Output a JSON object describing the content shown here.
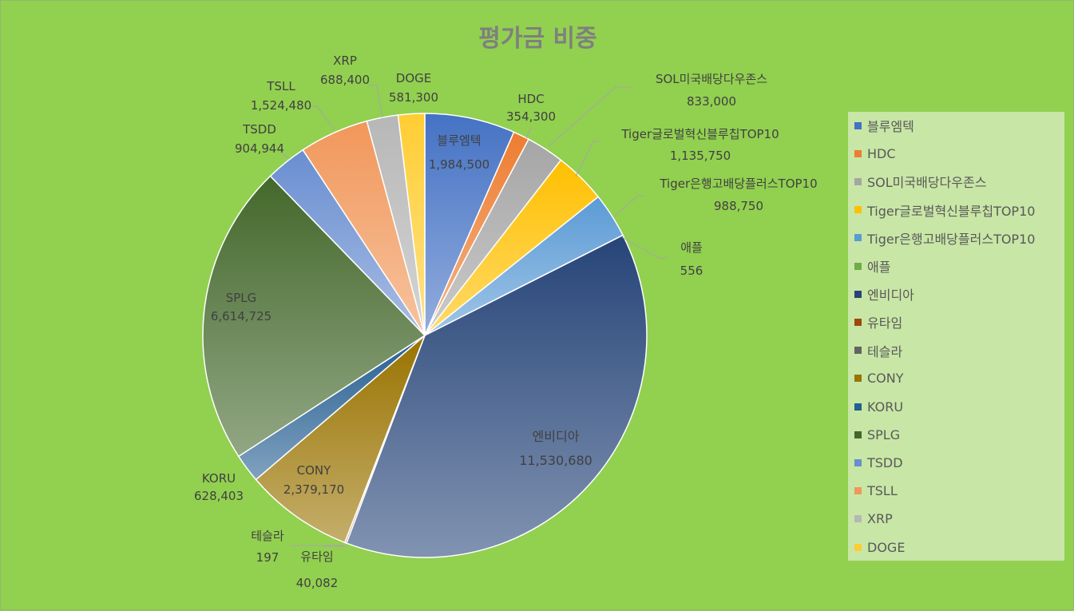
{
  "chart_data": {
    "type": "pie",
    "title": "평가금 비중",
    "legend_position": "right",
    "categories": [
      "블루엠텍",
      "HDC",
      "SOL미국배당다우존스",
      "Tiger글로벌혁신블루칩TOP10",
      "Tiger은행고배당플러스TOP10",
      "애플",
      "엔비디아",
      "유타임",
      "테슬라",
      "CONY",
      "KORU",
      "SPLG",
      "TSDD",
      "TSLL",
      "XRP",
      "DOGE"
    ],
    "values": [
      1984500,
      354300,
      833000,
      1135750,
      988750,
      556,
      11530680,
      40082,
      197,
      2379170,
      628403,
      6614725,
      904944,
      1524480,
      688400,
      581300
    ],
    "value_labels": [
      "1,984,500",
      "354,300",
      "833,000",
      "1,135,750",
      "988,750",
      "556",
      "11,530,680",
      "40,082",
      "197",
      "2,379,170",
      "628,403",
      "6,614,725",
      "904,944",
      "1,524,480",
      "688,400",
      "581,300"
    ],
    "colors": [
      "#4472c4",
      "#ed7d31",
      "#a5a5a5",
      "#ffc000",
      "#5b9bd5",
      "#70ad47",
      "#264478",
      "#9e480e",
      "#636363",
      "#997300",
      "#255e91",
      "#43682b",
      "#698ed0",
      "#f1975a",
      "#b7b7b7",
      "#ffcd33"
    ]
  }
}
